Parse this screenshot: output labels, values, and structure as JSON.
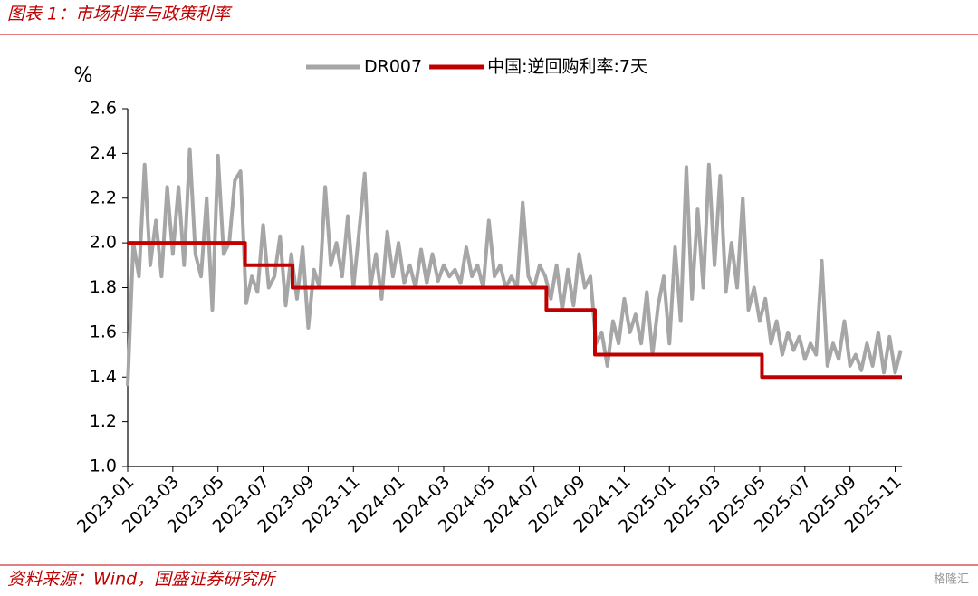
{
  "chart_data": {
    "type": "line",
    "title": "图表 1：市场利率与政策利率",
    "source": "资料来源：Wind，国盛证券研究所",
    "watermark": "格隆汇",
    "y_label": "%",
    "xlim": [
      0,
      34.3
    ],
    "xticks": [
      {
        "value": 0,
        "label": "2023-01"
      },
      {
        "value": 2,
        "label": "2023-03"
      },
      {
        "value": 4,
        "label": "2023-05"
      },
      {
        "value": 6,
        "label": "2023-07"
      },
      {
        "value": 8,
        "label": "2023-09"
      },
      {
        "value": 10,
        "label": "2023-11"
      },
      {
        "value": 12,
        "label": "2024-01"
      },
      {
        "value": 14,
        "label": "2024-03"
      },
      {
        "value": 16,
        "label": "2024-05"
      },
      {
        "value": 18,
        "label": "2024-07"
      },
      {
        "value": 20,
        "label": "2024-09"
      },
      {
        "value": 22,
        "label": "2024-11"
      },
      {
        "value": 24,
        "label": "2025-01"
      },
      {
        "value": 26,
        "label": "2025-03"
      },
      {
        "value": 28,
        "label": "2025-05"
      },
      {
        "value": 30,
        "label": "2025-07"
      },
      {
        "value": 32,
        "label": "2025-09"
      },
      {
        "value": 34,
        "label": "2025-11"
      }
    ],
    "ylim": [
      1.0,
      2.6
    ],
    "yticks": [
      {
        "value": 1.0,
        "label": "1.0"
      },
      1.2,
      1.4,
      1.6,
      1.8,
      {
        "value": 2.0,
        "label": "2.0"
      },
      2.2,
      2.4,
      2.6
    ],
    "grid": false,
    "legend": "top",
    "series": [
      {
        "name": "DR007",
        "color": "#a6a6a6",
        "x": [
          0,
          0.25,
          0.5,
          0.75,
          1,
          1.25,
          1.5,
          1.75,
          2,
          2.25,
          2.5,
          2.75,
          3,
          3.25,
          3.5,
          3.75,
          4,
          4.25,
          4.5,
          4.75,
          5,
          5.25,
          5.5,
          5.75,
          6,
          6.25,
          6.5,
          6.75,
          7,
          7.25,
          7.5,
          7.75,
          8,
          8.25,
          8.5,
          8.75,
          9,
          9.25,
          9.5,
          9.75,
          10,
          10.25,
          10.5,
          10.75,
          11,
          11.25,
          11.5,
          11.75,
          12,
          12.25,
          12.5,
          12.75,
          13,
          13.25,
          13.5,
          13.75,
          14,
          14.25,
          14.5,
          14.75,
          15,
          15.25,
          15.5,
          15.75,
          16,
          16.25,
          16.5,
          16.75,
          17,
          17.25,
          17.5,
          17.75,
          18,
          18.25,
          18.5,
          18.75,
          19,
          19.25,
          19.5,
          19.75,
          20,
          20.25,
          20.5,
          20.75,
          21,
          21.25,
          21.5,
          21.75,
          22,
          22.25,
          22.5,
          22.75,
          23,
          23.25,
          23.5,
          23.75,
          24,
          24.25,
          24.5,
          24.75,
          25,
          25.25,
          25.5,
          25.75,
          26,
          26.25,
          26.5,
          26.75,
          27,
          27.25,
          27.5,
          27.75,
          28,
          28.25,
          28.5,
          28.75,
          29,
          29.25,
          29.5,
          29.75,
          30,
          30.25,
          30.5,
          30.75,
          31,
          31.25,
          31.5,
          31.75,
          32,
          32.25,
          32.5,
          32.75,
          33,
          33.25,
          33.5,
          33.75,
          34,
          34.25
        ],
        "values": [
          1.36,
          2.0,
          1.85,
          2.35,
          1.9,
          2.1,
          1.85,
          2.25,
          1.95,
          2.25,
          1.9,
          2.42,
          1.95,
          1.85,
          2.2,
          1.7,
          2.39,
          1.95,
          2.0,
          2.28,
          2.32,
          1.73,
          1.85,
          1.78,
          2.08,
          1.8,
          1.85,
          2.03,
          1.72,
          1.95,
          1.75,
          1.98,
          1.62,
          1.88,
          1.8,
          2.25,
          1.9,
          2.0,
          1.85,
          2.12,
          1.8,
          2.05,
          2.31,
          1.8,
          1.95,
          1.75,
          2.05,
          1.85,
          2.0,
          1.82,
          1.9,
          1.8,
          1.97,
          1.82,
          1.95,
          1.83,
          1.9,
          1.85,
          1.88,
          1.82,
          1.98,
          1.85,
          1.9,
          1.8,
          2.1,
          1.85,
          1.9,
          1.8,
          1.85,
          1.8,
          2.18,
          1.85,
          1.8,
          1.9,
          1.85,
          1.75,
          1.9,
          1.7,
          1.88,
          1.72,
          1.95,
          1.8,
          1.85,
          1.55,
          1.6,
          1.45,
          1.65,
          1.55,
          1.75,
          1.6,
          1.68,
          1.55,
          1.78,
          1.5,
          1.72,
          1.85,
          1.55,
          1.98,
          1.65,
          2.34,
          1.75,
          2.15,
          1.8,
          2.35,
          1.9,
          2.3,
          1.78,
          2.0,
          1.8,
          2.2,
          1.7,
          1.8,
          1.65,
          1.75,
          1.55,
          1.65,
          1.5,
          1.6,
          1.52,
          1.58,
          1.48,
          1.55,
          1.5,
          1.92,
          1.45,
          1.55,
          1.48,
          1.65,
          1.45,
          1.5,
          1.43,
          1.55,
          1.45,
          1.6,
          1.42,
          1.58,
          1.42,
          1.52
        ]
      },
      {
        "name": "中国:逆回购利率:7天",
        "color": "#c00000",
        "x": [
          0,
          5.2,
          5.2,
          7.3,
          7.3,
          18.55,
          18.55,
          20.7,
          20.7,
          28.1,
          28.1,
          34.3
        ],
        "values": [
          2.0,
          2.0,
          1.9,
          1.9,
          1.8,
          1.8,
          1.7,
          1.7,
          1.5,
          1.5,
          1.4,
          1.4
        ]
      }
    ]
  }
}
